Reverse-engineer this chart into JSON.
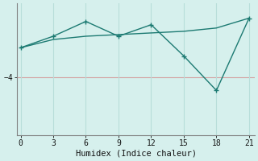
{
  "xlabel": "Humidex (Indice chaleur)",
  "x": [
    0,
    3,
    6,
    9,
    12,
    15,
    18,
    21
  ],
  "line1_y": [
    -2.2,
    -1.5,
    -0.6,
    -1.5,
    -0.8,
    -2.7,
    -4.8,
    -0.4
  ],
  "line2_y": [
    -2.2,
    -1.7,
    -1.5,
    -1.4,
    -1.3,
    -1.2,
    -1.0,
    -0.4
  ],
  "line_color": "#1c7a72",
  "bg_color": "#d6f0ed",
  "grid_color": "#b8deda",
  "ref_line_color": "#d4a0a0",
  "yticks": [
    -4
  ],
  "xticks": [
    0,
    3,
    6,
    9,
    12,
    15,
    18,
    21
  ],
  "ylim": [
    -7.5,
    0.5
  ],
  "xlim": [
    -0.3,
    21.5
  ]
}
